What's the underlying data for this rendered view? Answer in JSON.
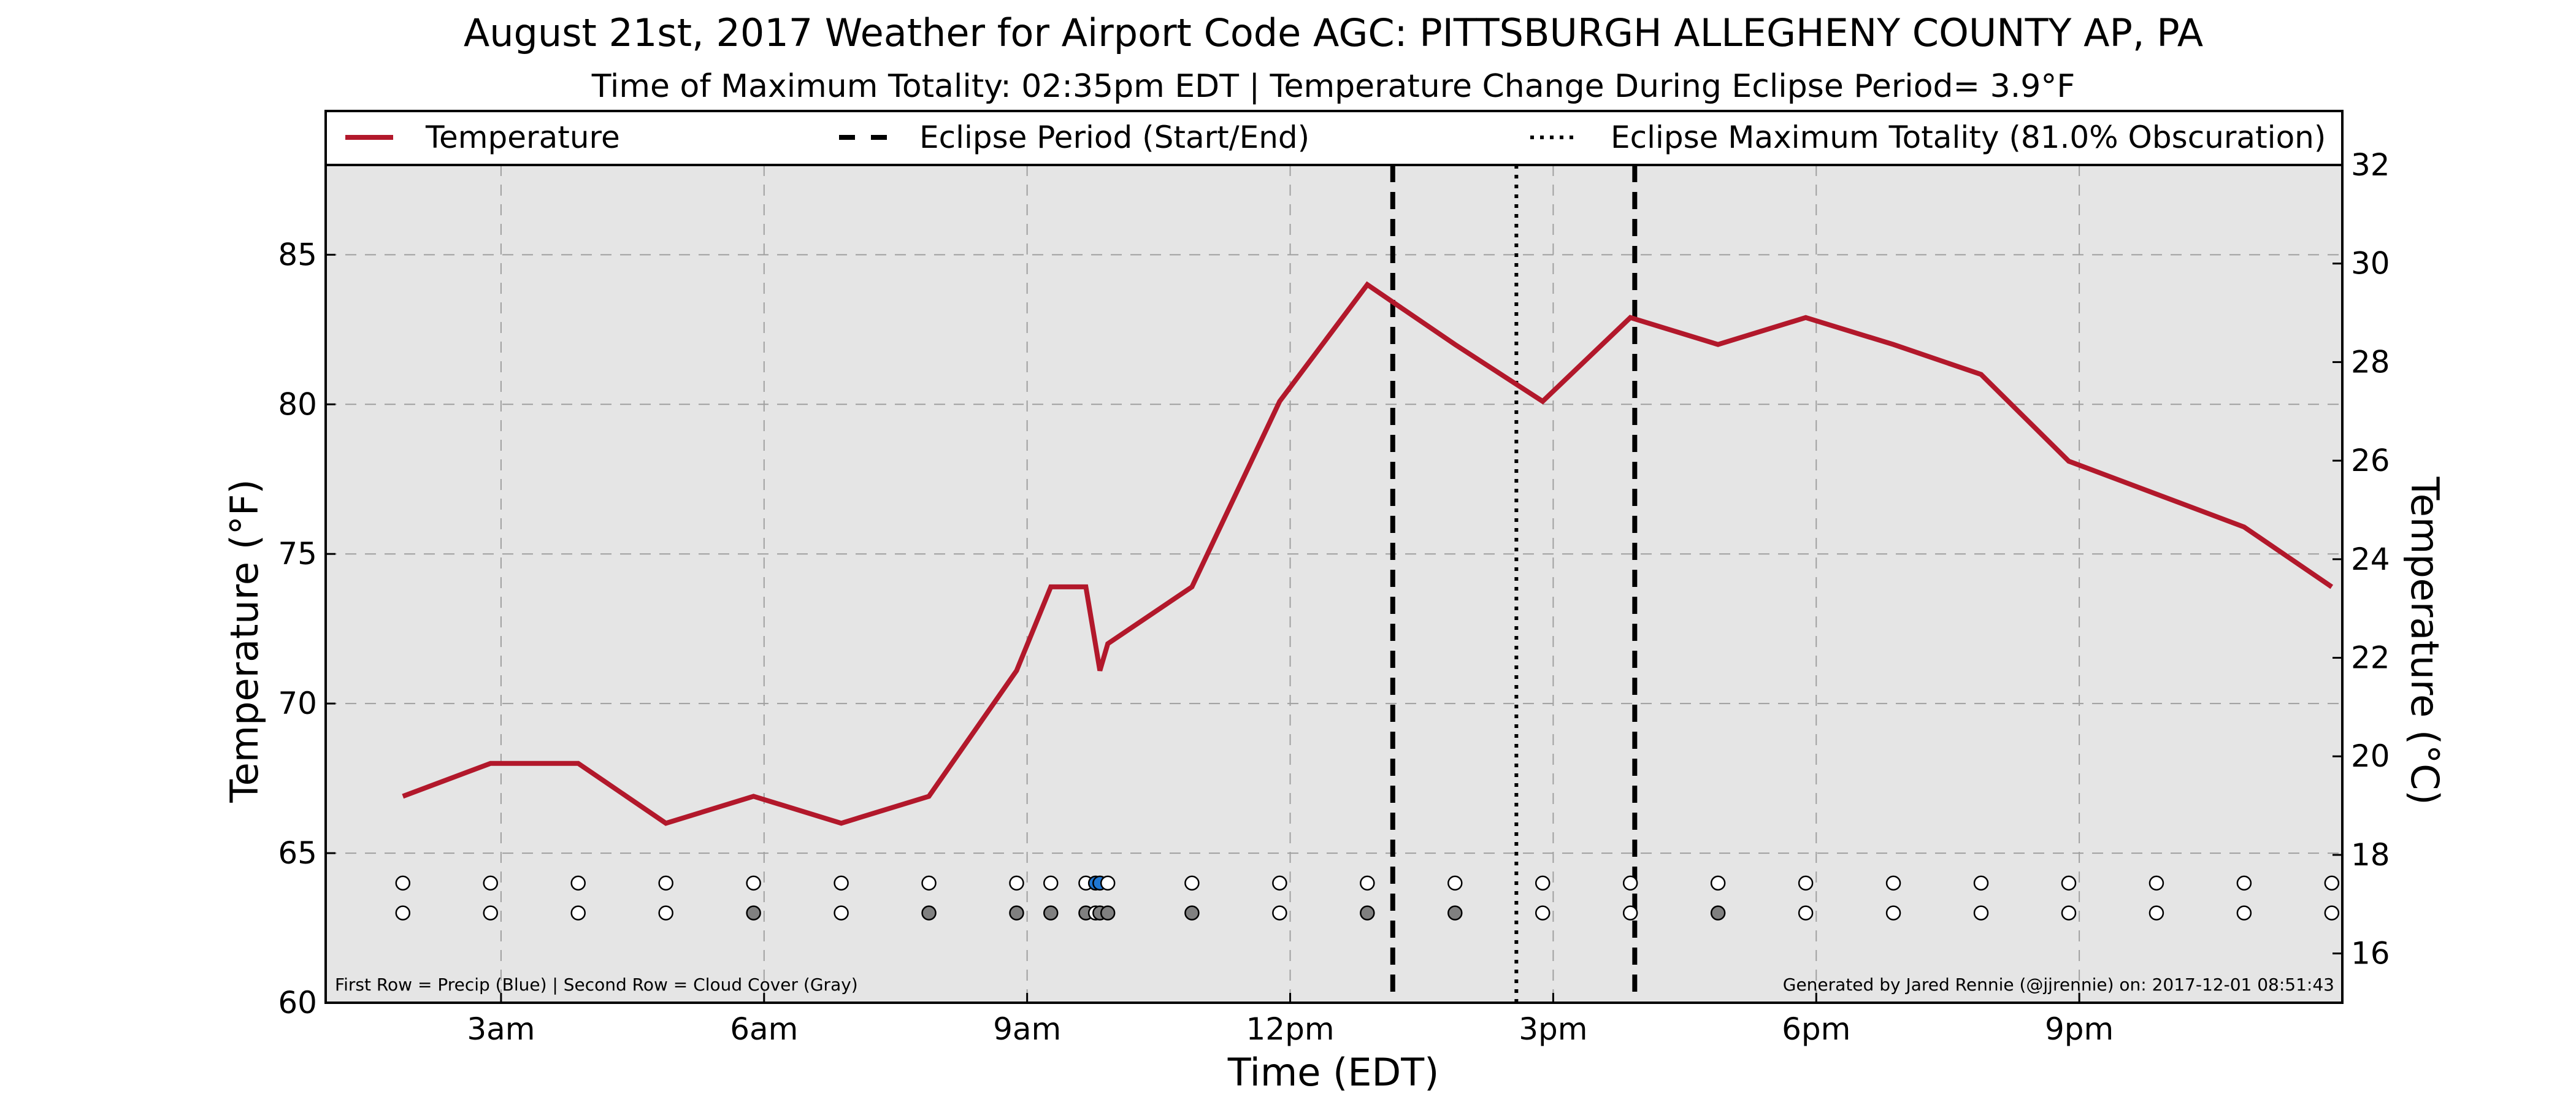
{
  "chart_data": {
    "type": "line",
    "title": "August 21st, 2017 Weather for Airport Code AGC: PITTSBURGH ALLEGHENY COUNTY AP, PA",
    "subtitle": "Time of Maximum Totality: 02:35pm EDT | Temperature Change During Eclipse Period= 3.9°F",
    "xlabel": "Time (EDT)",
    "ylabel": "Temperature (°F)",
    "y2label": "Temperature (°C)",
    "xlim": [
      1.0,
      24.0
    ],
    "ylim": [
      60,
      88
    ],
    "y2lim": [
      15,
      32
    ],
    "grid": true,
    "x_ticks": [
      {
        "x": 3,
        "label": "3am"
      },
      {
        "x": 6,
        "label": "6am"
      },
      {
        "x": 9,
        "label": "9am"
      },
      {
        "x": 12,
        "label": "12pm"
      },
      {
        "x": 15,
        "label": "3pm"
      },
      {
        "x": 18,
        "label": "6pm"
      },
      {
        "x": 21,
        "label": "9pm"
      }
    ],
    "y_ticks": [
      60,
      65,
      70,
      75,
      80,
      85
    ],
    "y2_ticks": [
      16,
      18,
      20,
      22,
      24,
      26,
      28,
      30,
      32
    ],
    "legend": {
      "placement": "top",
      "entries": [
        {
          "label": "Temperature",
          "style": "solid",
          "color": "#b2182b"
        },
        {
          "label": "Eclipse Period (Start/End)",
          "style": "dashed",
          "color": "#000000"
        },
        {
          "label": "Eclipse Maximum Totality (81.0% Obscuration)",
          "style": "dotted",
          "color": "#000000"
        }
      ]
    },
    "series": [
      {
        "name": "Temperature",
        "color": "#b2182b",
        "points": [
          [
            1.88,
            66.9
          ],
          [
            2.88,
            68.0
          ],
          [
            3.88,
            68.0
          ],
          [
            4.88,
            66.0
          ],
          [
            5.88,
            66.9
          ],
          [
            6.88,
            66.0
          ],
          [
            7.88,
            66.9
          ],
          [
            8.88,
            71.1
          ],
          [
            9.27,
            73.9
          ],
          [
            9.67,
            73.9
          ],
          [
            9.83,
            71.1
          ],
          [
            9.92,
            72.0
          ],
          [
            10.88,
            73.9
          ],
          [
            11.88,
            80.1
          ],
          [
            12.88,
            84.0
          ],
          [
            13.88,
            82.0
          ],
          [
            14.88,
            80.1
          ],
          [
            15.88,
            82.9
          ],
          [
            16.88,
            82.0
          ],
          [
            17.88,
            82.9
          ],
          [
            18.88,
            82.0
          ],
          [
            19.88,
            81.0
          ],
          [
            20.88,
            78.1
          ],
          [
            21.88,
            77.0
          ],
          [
            22.88,
            75.9
          ],
          [
            23.88,
            73.9
          ]
        ]
      }
    ],
    "eclipse_start": 13.17,
    "eclipse_end": 15.93,
    "max_totality": 14.58,
    "observations": [
      {
        "x": 1.88,
        "precip": false,
        "cloud": false
      },
      {
        "x": 2.88,
        "precip": false,
        "cloud": false
      },
      {
        "x": 3.88,
        "precip": false,
        "cloud": false
      },
      {
        "x": 4.88,
        "precip": false,
        "cloud": false
      },
      {
        "x": 5.88,
        "precip": false,
        "cloud": true
      },
      {
        "x": 6.88,
        "precip": false,
        "cloud": false
      },
      {
        "x": 7.88,
        "precip": false,
        "cloud": true
      },
      {
        "x": 8.88,
        "precip": false,
        "cloud": true
      },
      {
        "x": 9.27,
        "precip": false,
        "cloud": true
      },
      {
        "x": 9.67,
        "precip": false,
        "cloud": true
      },
      {
        "x": 9.78,
        "precip": true,
        "cloud": false
      },
      {
        "x": 9.83,
        "precip": true,
        "cloud": true
      },
      {
        "x": 9.92,
        "precip": false,
        "cloud": true
      },
      {
        "x": 10.88,
        "precip": false,
        "cloud": true
      },
      {
        "x": 11.88,
        "precip": false,
        "cloud": false
      },
      {
        "x": 12.88,
        "precip": false,
        "cloud": true
      },
      {
        "x": 13.88,
        "precip": false,
        "cloud": true
      },
      {
        "x": 14.88,
        "precip": false,
        "cloud": false
      },
      {
        "x": 15.88,
        "precip": false,
        "cloud": false
      },
      {
        "x": 16.88,
        "precip": false,
        "cloud": true
      },
      {
        "x": 17.88,
        "precip": false,
        "cloud": false
      },
      {
        "x": 18.88,
        "precip": false,
        "cloud": false
      },
      {
        "x": 19.88,
        "precip": false,
        "cloud": false
      },
      {
        "x": 20.88,
        "precip": false,
        "cloud": false
      },
      {
        "x": 21.88,
        "precip": false,
        "cloud": false
      },
      {
        "x": 22.88,
        "precip": false,
        "cloud": false
      },
      {
        "x": 23.88,
        "precip": false,
        "cloud": false
      }
    ],
    "row_y": {
      "precip": 64.0,
      "cloud": 63.0
    },
    "colors": {
      "precip": "#1f77d4",
      "cloud": "#808080",
      "empty": "#ffffff",
      "plot_bg": "#e5e5e5"
    },
    "annotations": {
      "rows_note": "First Row = Precip (Blue) | Second Row = Cloud Cover (Gray)",
      "credit": "Generated by Jared Rennie (@jjrennie) on: 2017-12-01 08:51:43"
    }
  }
}
